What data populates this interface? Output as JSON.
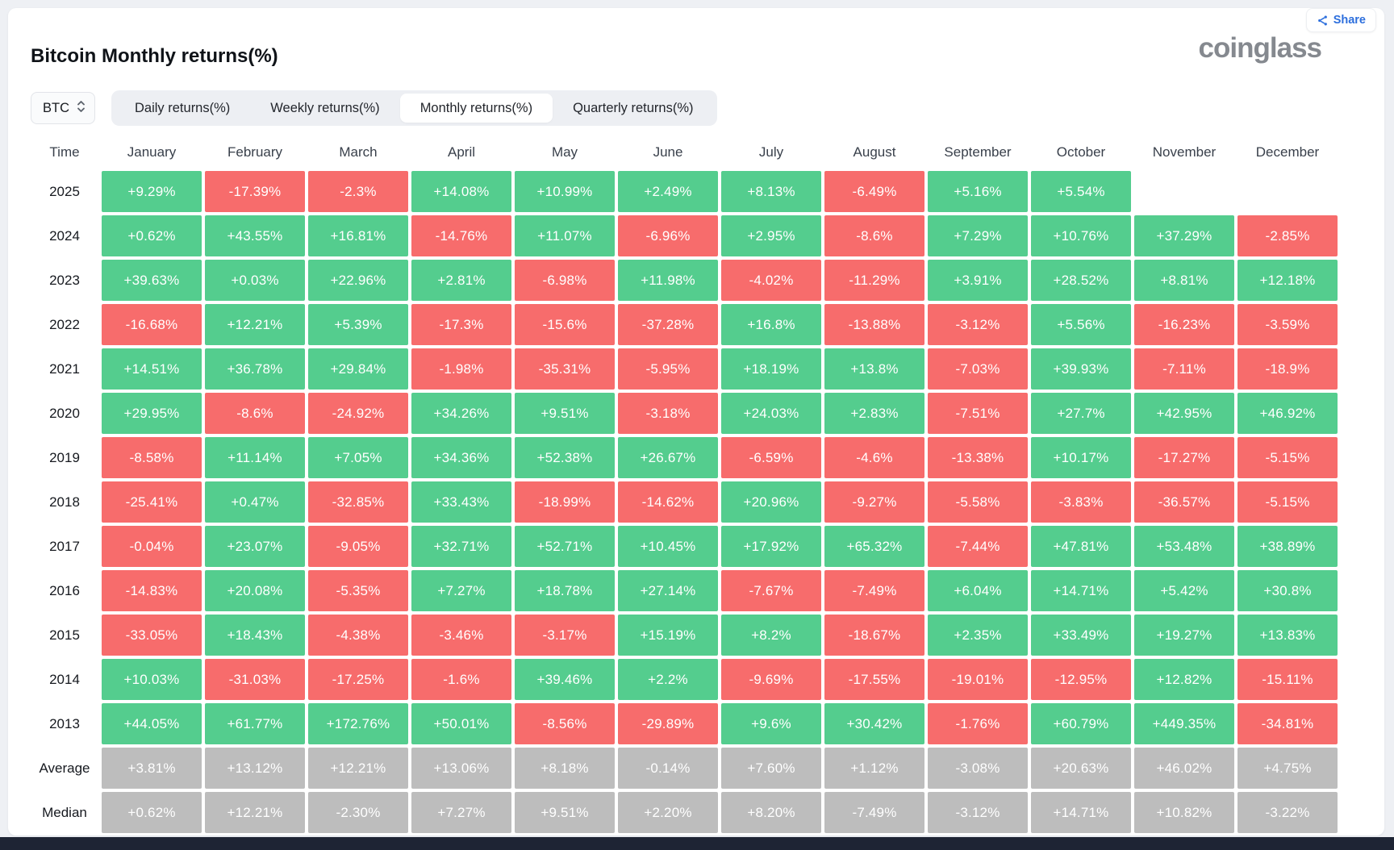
{
  "page": {
    "title": "Bitcoin Monthly returns(%)",
    "logo_text": "coinglass",
    "share_label": "Share"
  },
  "icons": {
    "share": "share-nodes-icon",
    "symbol_select": "chevron-up-down-icon"
  },
  "controls": {
    "symbol_select_value": "BTC",
    "tabs": [
      {
        "label": "Daily returns(%)",
        "active": false
      },
      {
        "label": "Weekly returns(%)",
        "active": false
      },
      {
        "label": "Monthly returns(%)",
        "active": true
      },
      {
        "label": "Quarterly returns(%)",
        "active": false
      }
    ]
  },
  "colors": {
    "positive": "#54cd8e",
    "negative": "#f76c6c",
    "neutral": "#bdbdbd",
    "accent_blue": "#2d6fdd",
    "bottom_bar": "#1e2434"
  },
  "chart_data": {
    "type": "heatmap",
    "title": "Bitcoin Monthly returns(%)",
    "columns": [
      "Time",
      "January",
      "February",
      "March",
      "April",
      "May",
      "June",
      "July",
      "August",
      "September",
      "October",
      "November",
      "December"
    ],
    "rows": [
      {
        "label": "2025",
        "type": "year",
        "values": [
          "+9.29%",
          "-17.39%",
          "-2.3%",
          "+14.08%",
          "+10.99%",
          "+2.49%",
          "+8.13%",
          "-6.49%",
          "+5.16%",
          "+5.54%",
          "",
          ""
        ]
      },
      {
        "label": "2024",
        "type": "year",
        "values": [
          "+0.62%",
          "+43.55%",
          "+16.81%",
          "-14.76%",
          "+11.07%",
          "-6.96%",
          "+2.95%",
          "-8.6%",
          "+7.29%",
          "+10.76%",
          "+37.29%",
          "-2.85%"
        ]
      },
      {
        "label": "2023",
        "type": "year",
        "values": [
          "+39.63%",
          "+0.03%",
          "+22.96%",
          "+2.81%",
          "-6.98%",
          "+11.98%",
          "-4.02%",
          "-11.29%",
          "+3.91%",
          "+28.52%",
          "+8.81%",
          "+12.18%"
        ]
      },
      {
        "label": "2022",
        "type": "year",
        "values": [
          "-16.68%",
          "+12.21%",
          "+5.39%",
          "-17.3%",
          "-15.6%",
          "-37.28%",
          "+16.8%",
          "-13.88%",
          "-3.12%",
          "+5.56%",
          "-16.23%",
          "-3.59%"
        ]
      },
      {
        "label": "2021",
        "type": "year",
        "values": [
          "+14.51%",
          "+36.78%",
          "+29.84%",
          "-1.98%",
          "-35.31%",
          "-5.95%",
          "+18.19%",
          "+13.8%",
          "-7.03%",
          "+39.93%",
          "-7.11%",
          "-18.9%"
        ]
      },
      {
        "label": "2020",
        "type": "year",
        "values": [
          "+29.95%",
          "-8.6%",
          "-24.92%",
          "+34.26%",
          "+9.51%",
          "-3.18%",
          "+24.03%",
          "+2.83%",
          "-7.51%",
          "+27.7%",
          "+42.95%",
          "+46.92%"
        ]
      },
      {
        "label": "2019",
        "type": "year",
        "values": [
          "-8.58%",
          "+11.14%",
          "+7.05%",
          "+34.36%",
          "+52.38%",
          "+26.67%",
          "-6.59%",
          "-4.6%",
          "-13.38%",
          "+10.17%",
          "-17.27%",
          "-5.15%"
        ]
      },
      {
        "label": "2018",
        "type": "year",
        "values": [
          "-25.41%",
          "+0.47%",
          "-32.85%",
          "+33.43%",
          "-18.99%",
          "-14.62%",
          "+20.96%",
          "-9.27%",
          "-5.58%",
          "-3.83%",
          "-36.57%",
          "-5.15%"
        ]
      },
      {
        "label": "2017",
        "type": "year",
        "values": [
          "-0.04%",
          "+23.07%",
          "-9.05%",
          "+32.71%",
          "+52.71%",
          "+10.45%",
          "+17.92%",
          "+65.32%",
          "-7.44%",
          "+47.81%",
          "+53.48%",
          "+38.89%"
        ]
      },
      {
        "label": "2016",
        "type": "year",
        "values": [
          "-14.83%",
          "+20.08%",
          "-5.35%",
          "+7.27%",
          "+18.78%",
          "+27.14%",
          "-7.67%",
          "-7.49%",
          "+6.04%",
          "+14.71%",
          "+5.42%",
          "+30.8%"
        ]
      },
      {
        "label": "2015",
        "type": "year",
        "values": [
          "-33.05%",
          "+18.43%",
          "-4.38%",
          "-3.46%",
          "-3.17%",
          "+15.19%",
          "+8.2%",
          "-18.67%",
          "+2.35%",
          "+33.49%",
          "+19.27%",
          "+13.83%"
        ]
      },
      {
        "label": "2014",
        "type": "year",
        "values": [
          "+10.03%",
          "-31.03%",
          "-17.25%",
          "-1.6%",
          "+39.46%",
          "+2.2%",
          "-9.69%",
          "-17.55%",
          "-19.01%",
          "-12.95%",
          "+12.82%",
          "-15.11%"
        ]
      },
      {
        "label": "2013",
        "type": "year",
        "values": [
          "+44.05%",
          "+61.77%",
          "+172.76%",
          "+50.01%",
          "-8.56%",
          "-29.89%",
          "+9.6%",
          "+30.42%",
          "-1.76%",
          "+60.79%",
          "+449.35%",
          "-34.81%"
        ]
      },
      {
        "label": "Average",
        "type": "summary",
        "values": [
          "+3.81%",
          "+13.12%",
          "+12.21%",
          "+13.06%",
          "+8.18%",
          "-0.14%",
          "+7.60%",
          "+1.12%",
          "-3.08%",
          "+20.63%",
          "+46.02%",
          "+4.75%"
        ]
      },
      {
        "label": "Median",
        "type": "summary",
        "values": [
          "+0.62%",
          "+12.21%",
          "-2.30%",
          "+7.27%",
          "+9.51%",
          "+2.20%",
          "+8.20%",
          "-7.49%",
          "-3.12%",
          "+14.71%",
          "+10.82%",
          "-3.22%"
        ]
      }
    ]
  }
}
